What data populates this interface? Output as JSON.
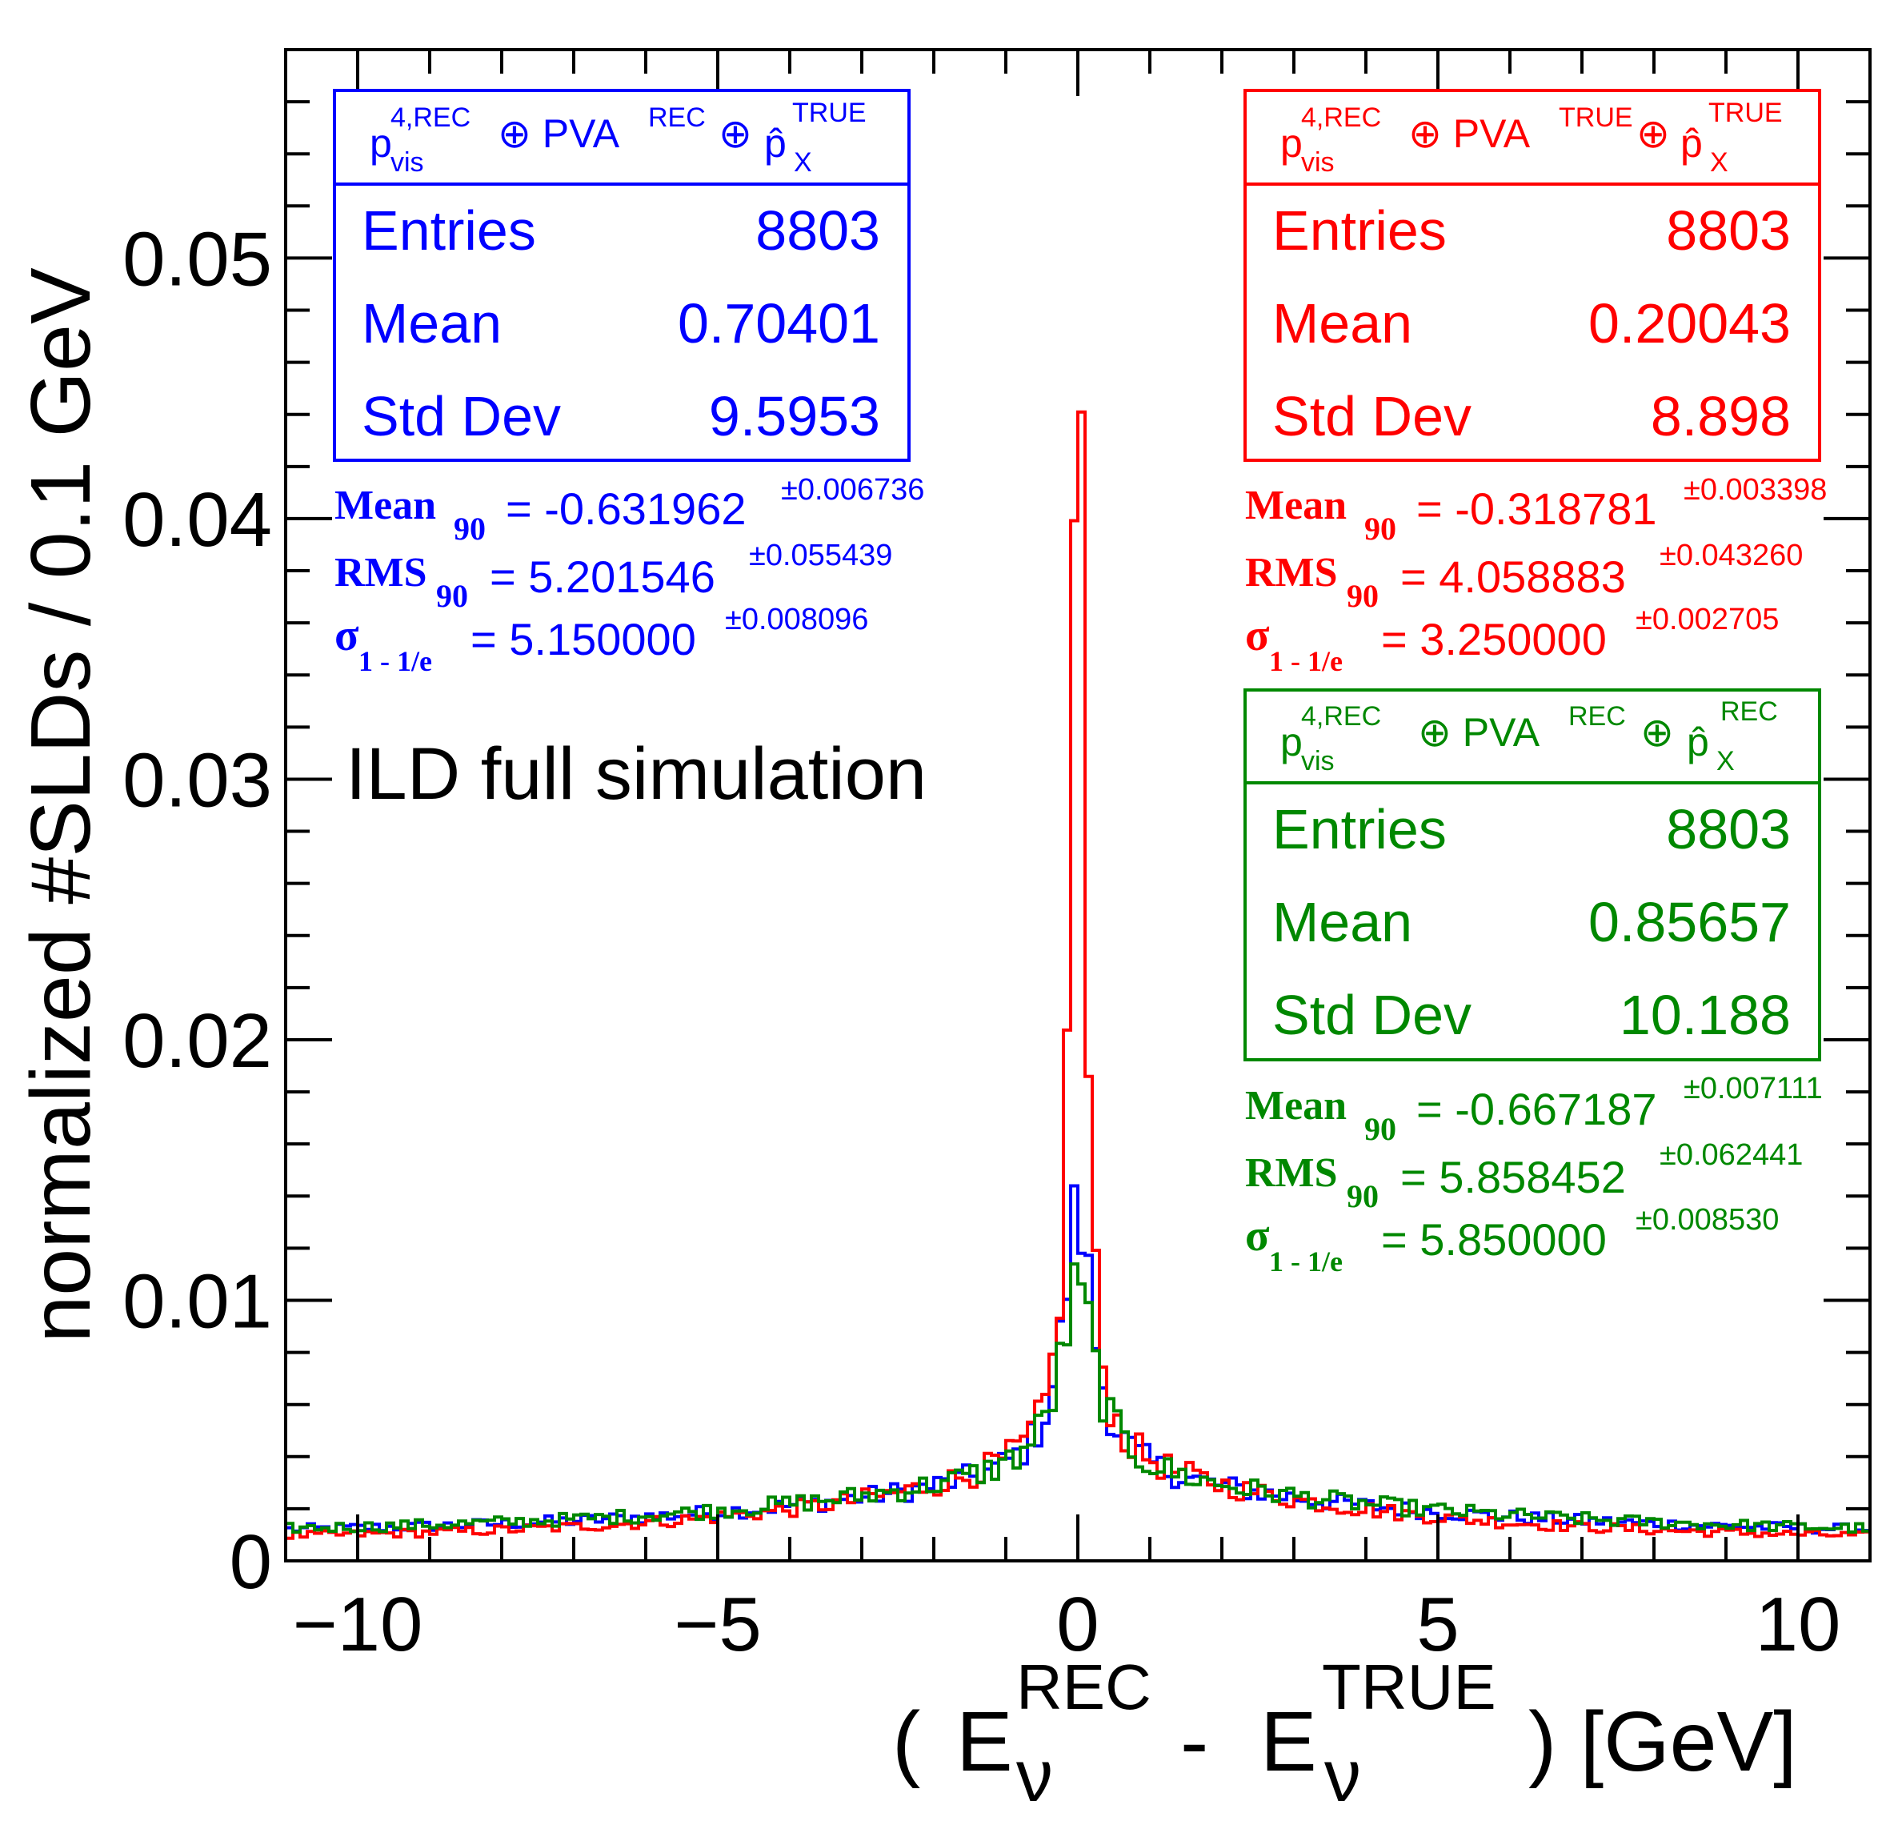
{
  "chart_data": {
    "type": "histogram-step",
    "xlabel": "( E_ν^REC - E_ν^TRUE ) [GeV]",
    "xlabel_parts": {
      "open": "(",
      "e1": "E",
      "sub1": "ν",
      "sup1": "REC",
      "minus": "-",
      "e2": "E",
      "sub2": "ν",
      "sup2": "TRUE",
      "close": ") [GeV]"
    },
    "ylabel": "normalized #SLDs / 0.1 GeV",
    "xlim": [
      -11,
      11
    ],
    "ylim": [
      0,
      0.058
    ],
    "xticks": [
      {
        "v": -10,
        "label": "−10"
      },
      {
        "v": -5,
        "label": "−5"
      },
      {
        "v": 0,
        "label": "0"
      },
      {
        "v": 5,
        "label": "5"
      },
      {
        "v": 10,
        "label": "10"
      }
    ],
    "yticks": [
      {
        "v": 0,
        "label": "0"
      },
      {
        "v": 0.01,
        "label": "0.01"
      },
      {
        "v": 0.02,
        "label": "0.02"
      },
      {
        "v": 0.03,
        "label": "0.03"
      },
      {
        "v": 0.04,
        "label": "0.04"
      },
      {
        "v": 0.05,
        "label": "0.05"
      }
    ],
    "annotation": "ILD full simulation",
    "series": [
      {
        "key": "blue",
        "color": "#0000ff",
        "legend": {
          "base": "p",
          "base_sup": "4,REC",
          "base_sub": "vis",
          "op1": "⊕ PVA",
          "op1_sup": "REC",
          "op2": "⊕",
          "phat": "p̂",
          "phat_sup": "TRUE",
          "phat_sub": "X"
        },
        "stats": {
          "entries_label": "Entries",
          "entries": "8803",
          "mean_label": "Mean",
          "mean": "0.70401",
          "std_label": "Std Dev",
          "std": "9.5953"
        },
        "extra": [
          {
            "name": "Mean",
            "sub": "90",
            "value": "= -0.631962",
            "err": "±0.006736"
          },
          {
            "name": "RMS",
            "sub": "90",
            "value": "= 5.201546",
            "err": "±0.055439"
          },
          {
            "name": "σ",
            "sub": "1 - 1/e",
            "value": "= 5.150000",
            "err": "±0.008096"
          }
        ],
        "profile": {
          "amp": 0.0095,
          "hw": 0.25,
          "bg": 0.0028,
          "bw": 4.2,
          "edge": 0.001
        }
      },
      {
        "key": "red",
        "color": "#ff0000",
        "legend": {
          "base": "p",
          "base_sup": "4,REC",
          "base_sub": "vis",
          "op1": "⊕ PVA",
          "op1_sup": "TRUE",
          "op2": "⊕",
          "phat": "p̂",
          "phat_sup": "TRUE",
          "phat_sub": "X"
        },
        "stats": {
          "entries_label": "Entries",
          "entries": "8803",
          "mean_label": "Mean",
          "mean": "0.20043",
          "std_label": "Std Dev",
          "std": "8.898"
        },
        "extra": [
          {
            "name": "Mean",
            "sub": "90",
            "value": "= -0.318781",
            "err": "±0.003398"
          },
          {
            "name": "RMS",
            "sub": "90",
            "value": "= 4.058883",
            "err": "±0.043260"
          },
          {
            "name": "σ",
            "sub": "1 - 1/e",
            "value": "= 3.250000",
            "err": "±0.002705"
          }
        ],
        "profile": {
          "amp": 0.047,
          "hw": 0.1,
          "bg": 0.0035,
          "bw": 3.6,
          "edge": 0.0008
        }
      },
      {
        "key": "green",
        "color": "#008800",
        "legend": {
          "base": "p",
          "base_sup": "4,REC",
          "base_sub": "vis",
          "op1": "⊕ PVA",
          "op1_sup": "REC",
          "op2": "⊕",
          "phat": "p̂",
          "phat_sup": "REC",
          "phat_sub": "X"
        },
        "stats": {
          "entries_label": "Entries",
          "entries": "8803",
          "mean_label": "Mean",
          "mean": "0.85657",
          "std_label": "Std Dev",
          "std": "10.188"
        },
        "extra": [
          {
            "name": "Mean",
            "sub": "90",
            "value": "= -0.667187",
            "err": "±0.007111"
          },
          {
            "name": "RMS",
            "sub": "90",
            "value": "= 5.858452",
            "err": "±0.062441"
          },
          {
            "name": "σ",
            "sub": "1 - 1/e",
            "value": "= 5.850000",
            "err": "±0.008530"
          }
        ],
        "profile": {
          "amp": 0.0065,
          "hw": 0.3,
          "bg": 0.0028,
          "bw": 4.5,
          "edge": 0.001
        }
      }
    ]
  }
}
